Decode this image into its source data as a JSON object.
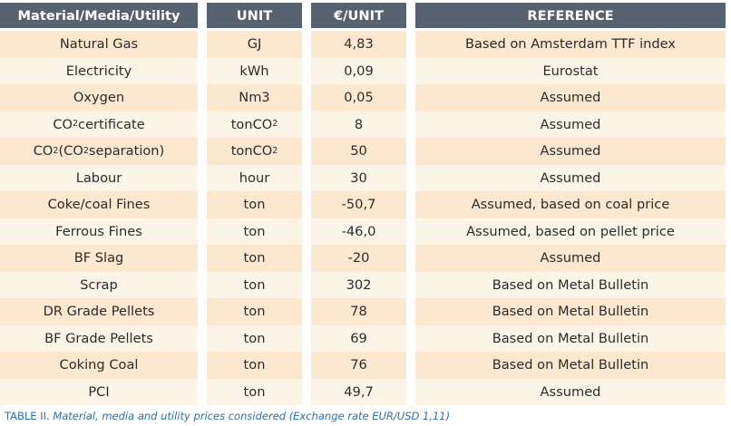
{
  "table": {
    "headers": [
      "Material/Media/Utility",
      "UNIT",
      "€/UNIT",
      "REFERENCE"
    ],
    "rows": [
      {
        "material": "Natural Gas",
        "unit": "GJ",
        "price": "4,83",
        "reference": "Based on Amsterdam TTF index"
      },
      {
        "material": "Electricity",
        "unit": "kWh",
        "price": "0,09",
        "reference": "Eurostat"
      },
      {
        "material": "Oxygen",
        "unit": "Nm3",
        "price": "0,05",
        "reference": "Assumed"
      },
      {
        "material": "CO2 certificate",
        "unit": "tonCO2",
        "price": "8",
        "reference": "Assumed"
      },
      {
        "material": "CO2 (CO2 separation)",
        "unit": "tonCO2",
        "price": "50",
        "reference": "Assumed"
      },
      {
        "material": "Labour",
        "unit": "hour",
        "price": "30",
        "reference": "Assumed"
      },
      {
        "material": "Coke/coal Fines",
        "unit": "ton",
        "price": "-50,7",
        "reference": "Assumed, based on coal price"
      },
      {
        "material": "Ferrous Fines",
        "unit": "ton",
        "price": "-46,0",
        "reference": "Assumed, based on pellet price"
      },
      {
        "material": "BF Slag",
        "unit": "ton",
        "price": "-20",
        "reference": "Assumed"
      },
      {
        "material": "Scrap",
        "unit": "ton",
        "price": "302",
        "reference": "Based on Metal Bulletin"
      },
      {
        "material": "DR Grade Pellets",
        "unit": "ton",
        "price": "78",
        "reference": "Based on Metal Bulletin"
      },
      {
        "material": "BF Grade Pellets",
        "unit": "ton",
        "price": "69",
        "reference": "Based on Metal Bulletin"
      },
      {
        "material": "Coking Coal",
        "unit": "ton",
        "price": "76",
        "reference": "Based on Metal Bulletin"
      },
      {
        "material": "PCI",
        "unit": "ton",
        "price": "49,7",
        "reference": "Assumed"
      }
    ]
  },
  "caption": {
    "label": "TABLE II.",
    "text": "Material, media and utility prices considered (Exchange rate EUR/USD 1,11)"
  },
  "colors": {
    "header_bg": "#566270",
    "row_odd": "#fbe8cf",
    "row_even": "#fdf4e8",
    "caption": "#2b6fa8"
  }
}
